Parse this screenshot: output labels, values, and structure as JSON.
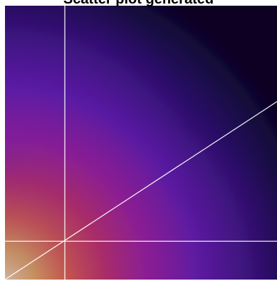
{
  "chart_data": {
    "type": "heatmap",
    "title": "Scatter plot generated",
    "xlabel": "",
    "ylabel": "",
    "colormap": "inferno-like",
    "colors": {
      "low": "#0a0524",
      "mid": "#5a1aa8",
      "high": "#ff7a1a",
      "peak": "#fff2a0",
      "guides": "#ffffff"
    },
    "density_peak": [
      0,
      0
    ],
    "reference_lines": [
      {
        "kind": "vertical",
        "x": 0.22
      },
      {
        "kind": "horizontal",
        "y": 0.14
      },
      {
        "kind": "diagonal",
        "from": [
          0,
          0
        ],
        "to": [
          1,
          0.65
        ]
      }
    ],
    "xlim": [
      0,
      1
    ],
    "ylim": [
      0,
      1
    ],
    "grid": false,
    "legend": "none"
  }
}
